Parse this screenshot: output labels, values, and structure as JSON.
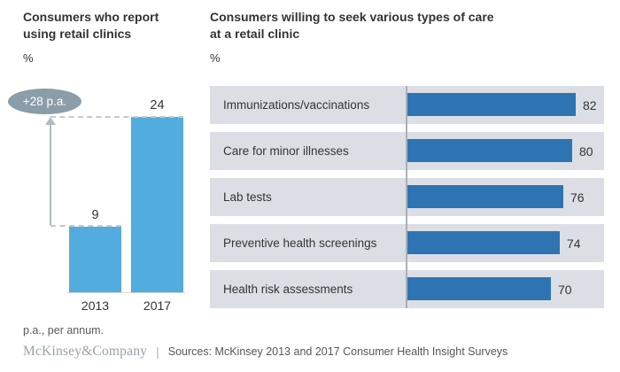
{
  "left_panel": {
    "title_line1": "Consumers who report",
    "title_line2": "using retail clinics",
    "unit_label": "%",
    "badge_label": "+28 p.a."
  },
  "right_panel": {
    "title_line1": "Consumers willing to seek various types of care",
    "title_line2": "at a retail clinic",
    "unit_label": "%"
  },
  "footnote": "p.a., per annum.",
  "footer": {
    "logo": "McKinsey&Company",
    "divider": "|",
    "sources": "Sources: McKinsey 2013 and 2017 Consumer Health Insight Surveys"
  },
  "colors": {
    "left_bar": "#52ACDD",
    "right_bar": "#2F74B2",
    "row_background": "#DBDFE5",
    "badge_background": "#8B9DA9",
    "axis_line": "#A9B1B7",
    "dashed_line": "#C6CACC",
    "arrow": "#B3B9BC"
  },
  "chart_data": [
    {
      "type": "bar",
      "orientation": "vertical",
      "title": "Consumers who report using retail clinics",
      "ylabel": "%",
      "categories": [
        "2013",
        "2017"
      ],
      "values": [
        9,
        24
      ],
      "annotation": "+28 p.a.",
      "ylim": [
        0,
        24
      ],
      "grid": false,
      "legend": "none"
    },
    {
      "type": "bar",
      "orientation": "horizontal",
      "title": "Consumers willing to seek various types of care at a retail clinic",
      "xlabel": "%",
      "categories": [
        "Immunizations/vaccinations",
        "Care for minor illnesses",
        "Lab tests",
        "Preventive health screenings",
        "Health risk assessments"
      ],
      "values": [
        82,
        80,
        76,
        74,
        70
      ],
      "xlim": [
        0,
        100
      ],
      "grid": false,
      "legend": "none"
    }
  ]
}
